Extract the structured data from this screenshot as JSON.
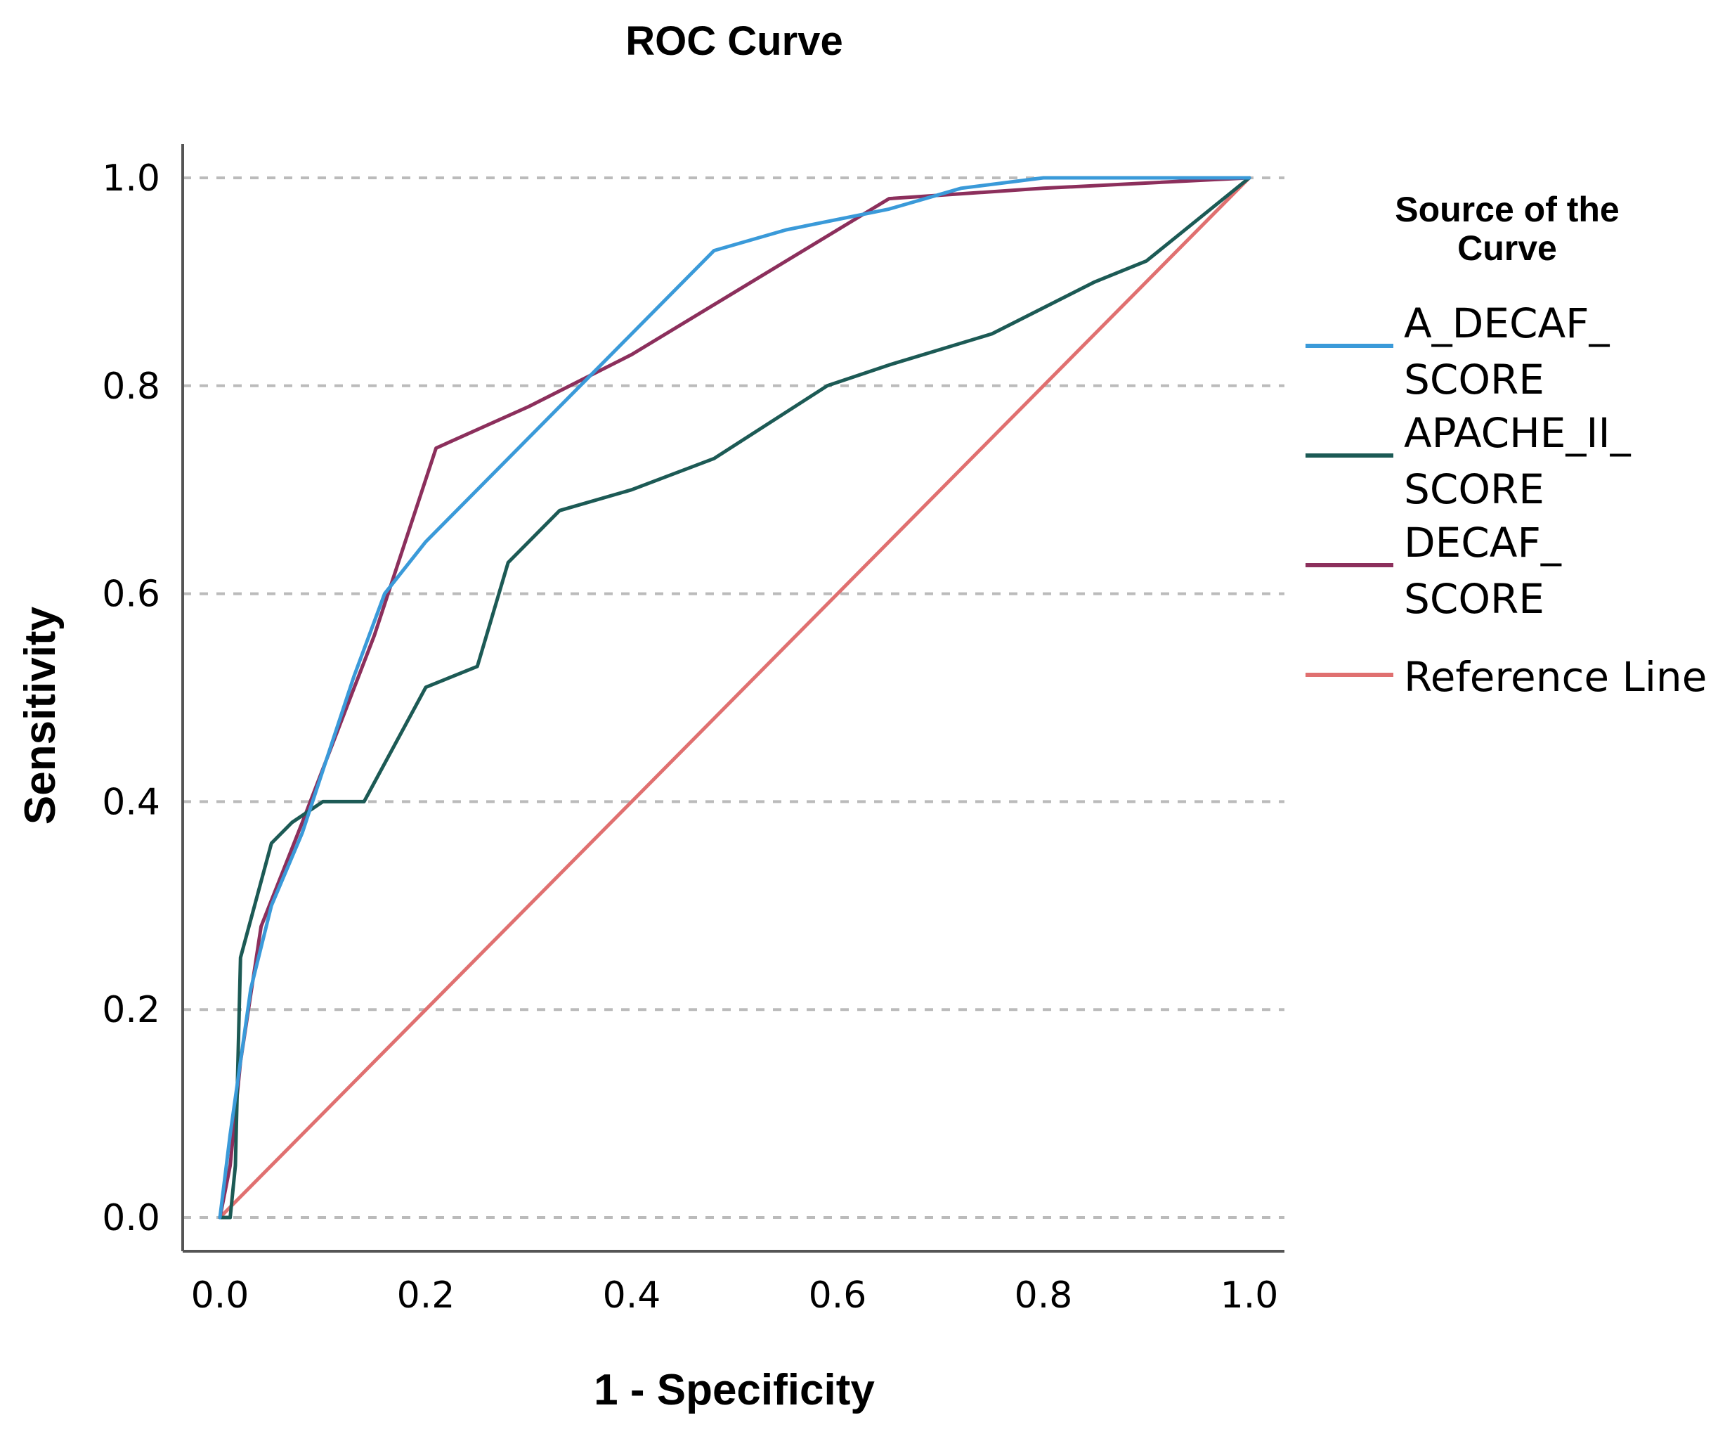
{
  "chart_data": {
    "type": "line",
    "title": "ROC Curve",
    "xlabel": "1 - Specificity",
    "ylabel": "Sensitivity",
    "xlim": [
      0,
      1
    ],
    "ylim": [
      0,
      1
    ],
    "x_ticks": [
      "0.0",
      "0.2",
      "0.4",
      "0.6",
      "0.8",
      "1.0"
    ],
    "y_ticks": [
      "0.0",
      "0.2",
      "0.4",
      "0.6",
      "0.8",
      "1.0"
    ],
    "grid": "horizontal-dashed",
    "legend": {
      "title": [
        "Source of the",
        "Curve"
      ],
      "placement": "right"
    },
    "series": [
      {
        "name": "A_DECAF_SCORE",
        "label_lines": [
          "A_DECAF_",
          "SCORE"
        ],
        "color": "#3a9ad9",
        "x": [
          0,
          0.01,
          0.03,
          0.05,
          0.08,
          0.1,
          0.13,
          0.16,
          0.2,
          0.3,
          0.4,
          0.48,
          0.55,
          0.65,
          0.72,
          0.8,
          1.0
        ],
        "y": [
          0,
          0.08,
          0.22,
          0.3,
          0.37,
          0.43,
          0.52,
          0.6,
          0.65,
          0.75,
          0.85,
          0.93,
          0.95,
          0.97,
          0.99,
          1.0,
          1.0
        ]
      },
      {
        "name": "APACHE_II_SCORE",
        "label_lines": [
          "APACHE_II_",
          "SCORE"
        ],
        "color": "#1c5a55",
        "x": [
          0,
          0.01,
          0.015,
          0.02,
          0.05,
          0.07,
          0.1,
          0.14,
          0.2,
          0.25,
          0.28,
          0.33,
          0.4,
          0.48,
          0.59,
          0.65,
          0.75,
          0.85,
          0.9,
          1.0
        ],
        "y": [
          0,
          0,
          0.05,
          0.25,
          0.36,
          0.38,
          0.4,
          0.4,
          0.51,
          0.53,
          0.63,
          0.68,
          0.7,
          0.73,
          0.8,
          0.82,
          0.85,
          0.9,
          0.92,
          1.0
        ]
      },
      {
        "name": "DECAF_SCORE",
        "label_lines": [
          "DECAF_",
          "SCORE"
        ],
        "color": "#8c2f5c",
        "x": [
          0,
          0.01,
          0.02,
          0.04,
          0.08,
          0.15,
          0.21,
          0.3,
          0.4,
          0.5,
          0.6,
          0.65,
          0.8,
          1.0
        ],
        "y": [
          0,
          0.05,
          0.15,
          0.28,
          0.38,
          0.56,
          0.74,
          0.78,
          0.83,
          0.89,
          0.95,
          0.98,
          0.99,
          1.0
        ]
      },
      {
        "name": "Reference Line",
        "label_lines": [
          "Reference Line"
        ],
        "color": "#e07070",
        "x": [
          0,
          1
        ],
        "y": [
          0,
          1
        ]
      }
    ]
  }
}
